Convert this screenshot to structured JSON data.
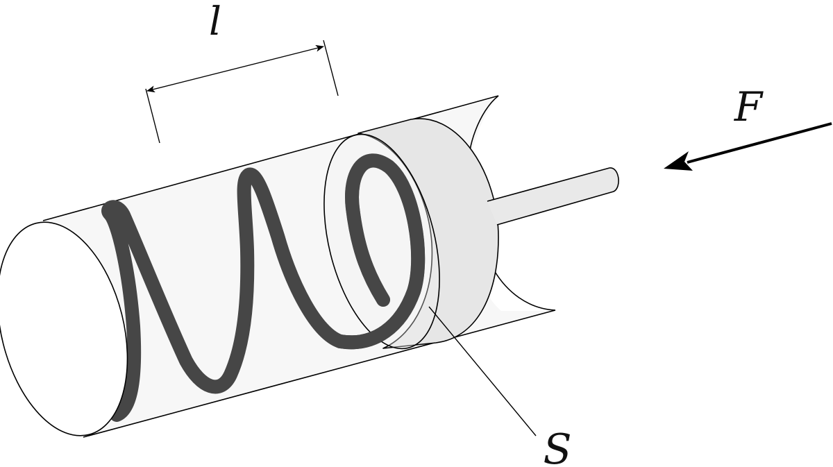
{
  "labels": {
    "length": "l",
    "force": "F",
    "area": "S"
  },
  "colors": {
    "outline": "#000000",
    "spring": "#464646",
    "cylinder_fill": "#f7f7f7",
    "piston_fill": "#e6e6e6",
    "rod_fill": "#e9e9e9",
    "background": "#ffffff"
  },
  "components": {
    "cylinder": "cylinder",
    "spring": "spring",
    "piston": "piston",
    "rod": "piston-rod",
    "force_arrow": "force-arrow",
    "dimension": "length-dimension",
    "leader": "area-leader-line"
  }
}
